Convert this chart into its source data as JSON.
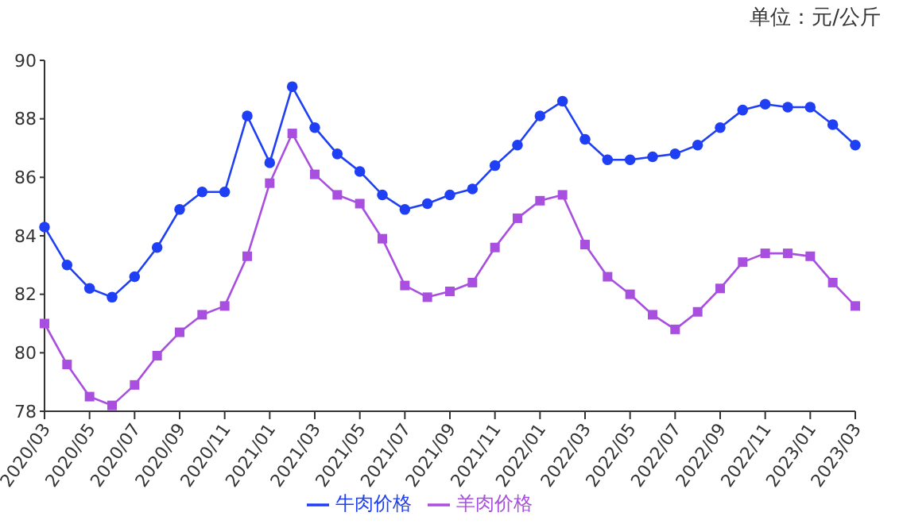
{
  "chart_data": {
    "type": "line",
    "annotations": [
      "单位：元/公斤"
    ],
    "categories": [
      "2020/03",
      null,
      "2020/05",
      null,
      "2020/07",
      null,
      "2020/09",
      null,
      "2020/11",
      null,
      "2021/01",
      null,
      "2021/03",
      null,
      "2021/05",
      null,
      "2021/07",
      null,
      "2021/09",
      null,
      "2021/11",
      null,
      "2022/01",
      null,
      "2022/03",
      null,
      "2022/05",
      null,
      "2022/07",
      null,
      "2022/09",
      null,
      "2022/11",
      null,
      "2023/01",
      null,
      "2023/03"
    ],
    "series": [
      {
        "name": "牛肉价格",
        "color": "#1f3ff5",
        "marker": "circle",
        "values": [
          84.3,
          83.0,
          82.2,
          81.9,
          82.6,
          83.6,
          84.9,
          85.5,
          85.5,
          88.1,
          86.5,
          89.1,
          87.7,
          86.8,
          86.2,
          85.4,
          84.9,
          85.1,
          85.4,
          85.6,
          86.4,
          87.1,
          88.1,
          88.6,
          87.3,
          86.6,
          86.6,
          86.7,
          86.8,
          87.1,
          87.7,
          88.3,
          88.5,
          88.4,
          88.4,
          87.8,
          87.1
        ]
      },
      {
        "name": "羊肉价格",
        "color": "#a84fe0",
        "marker": "square",
        "values": [
          81.0,
          79.6,
          78.5,
          78.2,
          78.9,
          79.9,
          80.7,
          81.3,
          81.6,
          83.3,
          85.8,
          87.5,
          86.1,
          85.4,
          85.1,
          83.9,
          82.3,
          81.9,
          82.1,
          82.4,
          83.6,
          84.6,
          85.2,
          85.4,
          83.7,
          82.6,
          82.0,
          81.3,
          80.8,
          81.4,
          82.2,
          83.1,
          83.4,
          83.4,
          83.3,
          82.4,
          81.6
        ]
      }
    ],
    "ylim": [
      78,
      90
    ],
    "yticks": [
      78,
      80,
      82,
      84,
      86,
      88,
      90
    ],
    "grid": false,
    "legend": "bottom",
    "line_style": "solid"
  }
}
